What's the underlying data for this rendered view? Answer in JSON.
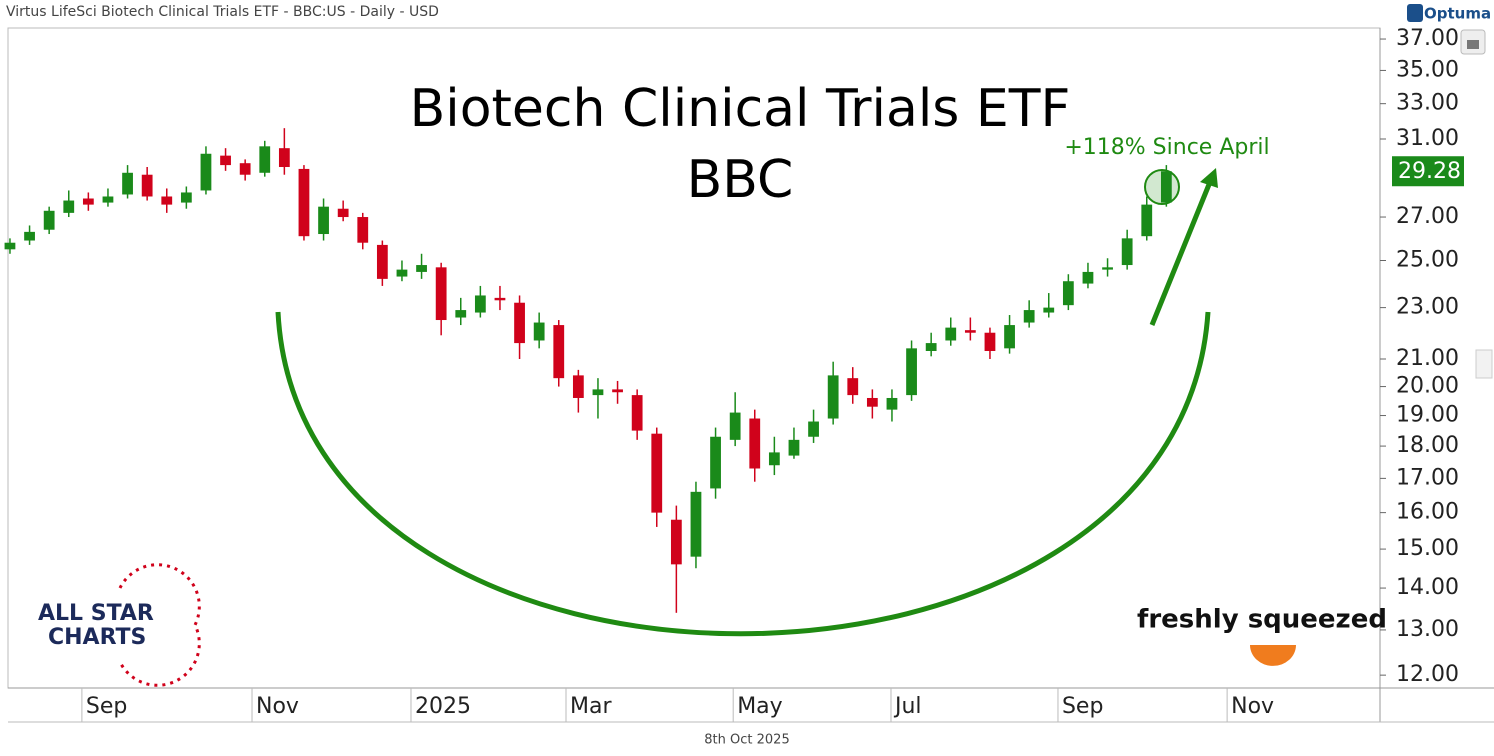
{
  "chart_data": {
    "type": "candlestick",
    "header": "Virtus LifeSci Biotech Clinical Trials ETF - BBC:US - Daily - USD",
    "brand": "Optuma",
    "title": "Biotech Clinical Trials ETF",
    "subtitle": "BBC",
    "annotation": "+118% Since April",
    "logo_left": [
      "ALL STAR",
      "CHARTS"
    ],
    "logo_right": "freshly squeezed",
    "footer": "8th Oct 2025",
    "up_color": "#1a8a1a",
    "down_color": "#d0021b",
    "accent_color": "#1f8a12",
    "log_scale": true,
    "grid": false,
    "open": [
      25.5,
      25.9,
      26.4,
      27.2,
      27.9,
      27.7,
      28.1,
      29.1,
      28.0,
      27.7,
      28.3,
      30.1,
      29.7,
      29.2,
      30.5,
      29.4,
      26.2,
      27.4,
      27.0,
      25.7,
      24.3,
      24.5,
      24.7,
      22.6,
      22.8,
      23.4,
      23.2,
      21.7,
      22.3,
      20.4,
      19.7,
      19.9,
      19.7,
      18.4,
      15.8,
      14.8,
      16.7,
      18.2,
      18.9,
      17.4,
      17.7,
      18.3,
      18.9,
      20.3,
      19.6,
      19.2,
      19.7,
      21.3,
      21.7,
      22.1,
      22.0,
      21.4,
      22.4,
      22.8,
      23.1,
      24.0,
      24.6,
      24.8,
      26.1,
      27.7
    ],
    "high": [
      26.0,
      26.6,
      27.5,
      28.3,
      28.2,
      28.4,
      29.6,
      29.5,
      28.4,
      28.5,
      30.6,
      30.5,
      29.9,
      30.9,
      31.6,
      29.6,
      27.9,
      27.8,
      27.2,
      25.9,
      25.0,
      25.3,
      24.9,
      23.4,
      23.9,
      23.9,
      23.5,
      22.8,
      22.5,
      20.6,
      20.3,
      20.2,
      19.9,
      18.6,
      16.2,
      16.9,
      18.6,
      19.8,
      19.2,
      18.3,
      18.6,
      19.2,
      20.9,
      20.7,
      19.9,
      19.9,
      21.7,
      22.0,
      22.6,
      22.6,
      22.2,
      22.7,
      23.3,
      23.6,
      24.4,
      24.9,
      25.1,
      26.4,
      28.0,
      29.6
    ],
    "low": [
      25.3,
      25.7,
      26.2,
      27.0,
      27.3,
      27.5,
      27.9,
      27.8,
      27.2,
      27.4,
      28.1,
      29.3,
      28.8,
      29.0,
      29.1,
      25.9,
      25.9,
      26.8,
      25.5,
      23.9,
      24.1,
      24.2,
      21.9,
      22.3,
      22.6,
      22.9,
      21.0,
      21.4,
      20.0,
      19.1,
      18.9,
      19.4,
      18.2,
      15.6,
      13.4,
      14.5,
      16.4,
      18.0,
      16.9,
      17.1,
      17.6,
      18.1,
      18.7,
      19.4,
      18.9,
      18.8,
      19.5,
      21.1,
      21.5,
      21.7,
      21.0,
      21.2,
      22.2,
      22.6,
      22.9,
      23.8,
      24.3,
      24.6,
      25.9,
      27.5
    ],
    "close": [
      25.8,
      26.3,
      27.3,
      27.8,
      27.6,
      28.0,
      29.2,
      28.0,
      27.6,
      28.2,
      30.2,
      29.6,
      29.1,
      30.6,
      29.5,
      26.1,
      27.5,
      27.0,
      25.8,
      24.2,
      24.6,
      24.8,
      22.5,
      22.9,
      23.5,
      23.3,
      21.6,
      22.4,
      20.3,
      19.6,
      19.9,
      19.8,
      18.5,
      16.0,
      14.6,
      16.6,
      18.3,
      19.1,
      17.3,
      17.8,
      18.2,
      18.8,
      20.4,
      19.7,
      19.3,
      19.6,
      21.4,
      21.6,
      22.2,
      22.0,
      21.3,
      22.3,
      22.9,
      23.0,
      24.1,
      24.5,
      24.7,
      26.0,
      27.6,
      29.28
    ],
    "xlim": [
      -0.1,
      69.9
    ],
    "xticks": [
      {
        "value": 3.67,
        "label": "Sep"
      },
      {
        "value": 12.35,
        "label": "Nov"
      },
      {
        "value": 20.46,
        "label": "2025"
      },
      {
        "value": 28.37,
        "label": "Mar"
      },
      {
        "value": 36.9,
        "label": "May"
      },
      {
        "value": 44.95,
        "label": "Jul"
      },
      {
        "value": 53.47,
        "label": "Sep"
      },
      {
        "value": 62.1,
        "label": "Nov"
      }
    ],
    "ylim": [
      11.73,
      37.73
    ],
    "yticks": [
      {
        "value": 12,
        "label": "12.00"
      },
      {
        "value": 13,
        "label": "13.00"
      },
      {
        "value": 14,
        "label": "14.00"
      },
      {
        "value": 15,
        "label": "15.00"
      },
      {
        "value": 16,
        "label": "16.00"
      },
      {
        "value": 17,
        "label": "17.00"
      },
      {
        "value": 18,
        "label": "18.00"
      },
      {
        "value": 19,
        "label": "19.00"
      },
      {
        "value": 20,
        "label": "20.00"
      },
      {
        "value": 21,
        "label": "21.00"
      },
      {
        "value": 23,
        "label": "23.00"
      },
      {
        "value": 25,
        "label": "25.00"
      },
      {
        "value": 27,
        "label": "27.00"
      },
      {
        "value": 31,
        "label": "31.00"
      },
      {
        "value": 33,
        "label": "33.00"
      },
      {
        "value": 35,
        "label": "35.00"
      },
      {
        "value": 37,
        "label": "37.00"
      }
    ]
  }
}
